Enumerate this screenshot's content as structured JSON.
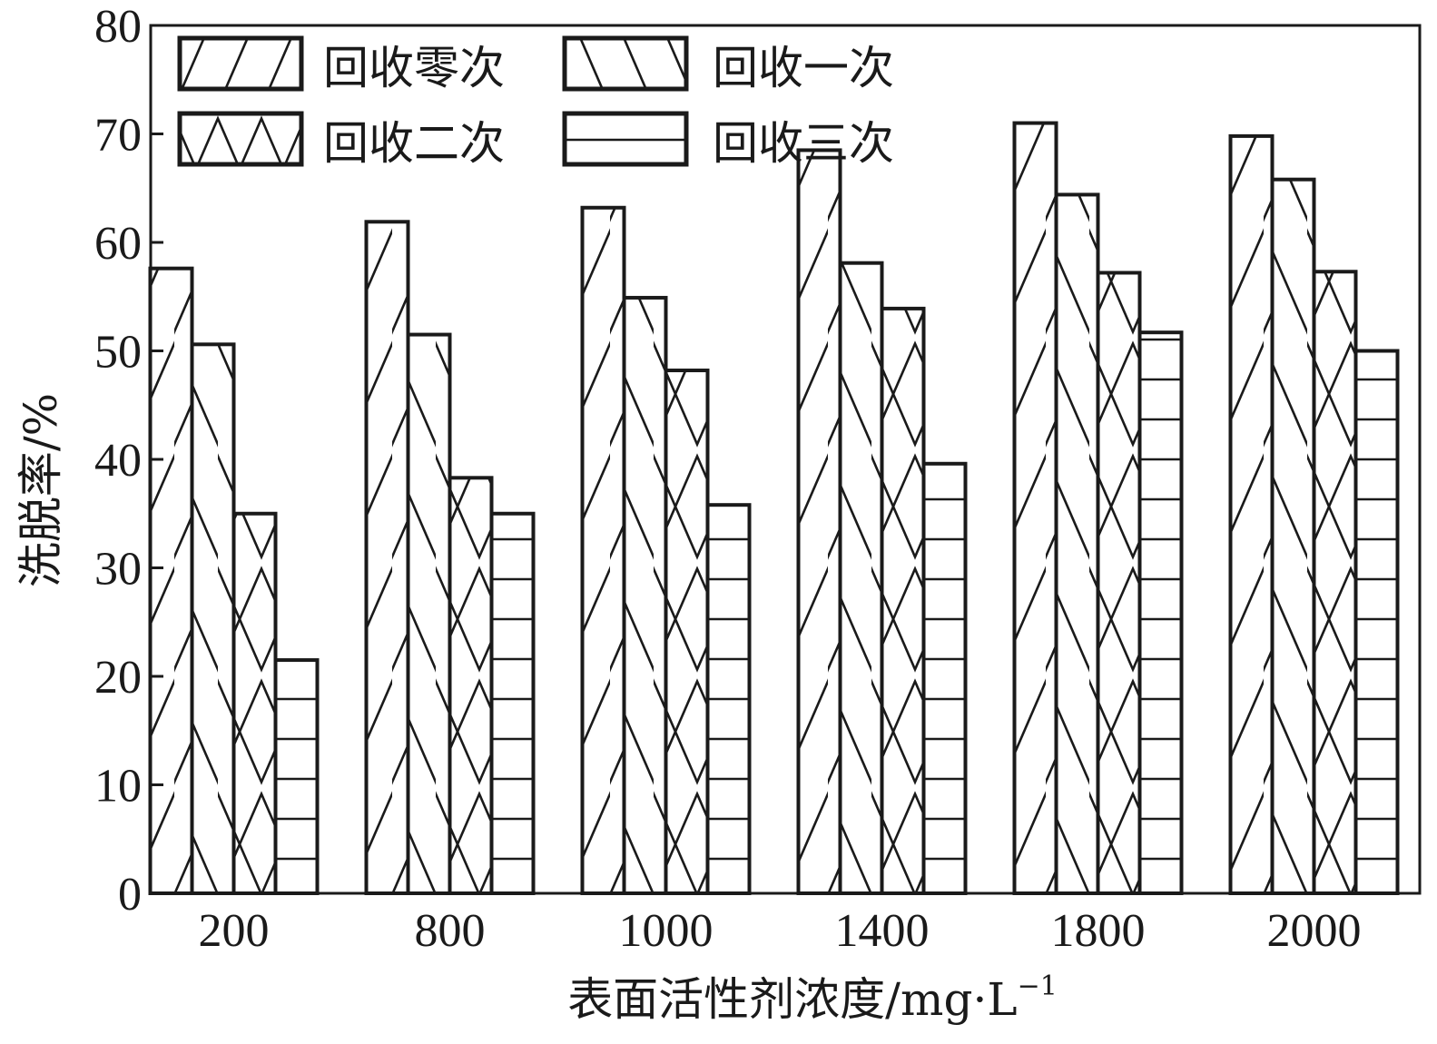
{
  "chart_data": {
    "type": "bar",
    "title": "",
    "xlabel": "表面活性剂浓度/mg·L",
    "xlabel_superscript": "−1",
    "ylabel": "洗脱率/%",
    "ylim": [
      0,
      80
    ],
    "yticks": [
      "0",
      "10",
      "20",
      "30",
      "40",
      "50",
      "60",
      "70",
      "80"
    ],
    "categories": [
      "200",
      "800",
      "1000",
      "1400",
      "1800",
      "2000"
    ],
    "series": [
      {
        "name": "回收零次",
        "pattern": "forward-diagonal",
        "values": [
          57.6,
          61.9,
          63.2,
          68.5,
          71.0,
          69.8
        ]
      },
      {
        "name": "回收一次",
        "pattern": "backward-diagonal",
        "values": [
          50.6,
          51.5,
          54.9,
          58.1,
          64.4,
          65.8
        ]
      },
      {
        "name": "回收二次",
        "pattern": "cross",
        "values": [
          35.0,
          38.3,
          48.2,
          53.9,
          57.2,
          57.3
        ]
      },
      {
        "name": "回收三次",
        "pattern": "horizontal",
        "values": [
          21.5,
          35.0,
          35.8,
          39.6,
          51.7,
          50.0
        ]
      }
    ],
    "legend_position": "top-left",
    "grid": false,
    "colors": {
      "stroke": "#1a1a1a",
      "fill": "#ffffff"
    }
  }
}
